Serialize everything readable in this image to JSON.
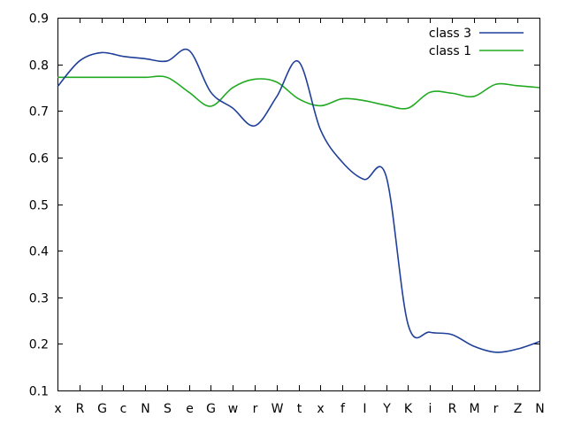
{
  "chart_data": {
    "type": "line",
    "categories": [
      "x",
      "R",
      "G",
      "c",
      "N",
      "S",
      "e",
      "G",
      "w",
      "r",
      "W",
      "t",
      "x",
      "f",
      "I",
      "Y",
      "K",
      "i",
      "R",
      "M",
      "r",
      "Z",
      "N"
    ],
    "series": [
      {
        "name": "class 3",
        "color": "#1f3f99",
        "values": [
          0.752,
          0.807,
          0.825,
          0.817,
          0.812,
          0.807,
          0.83,
          0.74,
          0.706,
          0.668,
          0.73,
          0.806,
          0.66,
          0.59,
          0.553,
          0.56,
          0.242,
          0.225,
          0.22,
          0.195,
          0.182,
          0.189,
          0.205
        ]
      },
      {
        "name": "class 1",
        "color": "#22aa22",
        "values": [
          0.772,
          0.772,
          0.772,
          0.772,
          0.772,
          0.772,
          0.74,
          0.71,
          0.75,
          0.768,
          0.762,
          0.726,
          0.711,
          0.726,
          0.722,
          0.712,
          0.706,
          0.74,
          0.738,
          0.731,
          0.757,
          0.754,
          0.75
        ]
      }
    ],
    "ylim": [
      0.1,
      0.9
    ],
    "yticks": [
      "0.1",
      "0.2",
      "0.3",
      "0.4",
      "0.5",
      "0.6",
      "0.7",
      "0.8",
      "0.9"
    ],
    "legend_position": "top-right",
    "grid": false
  }
}
